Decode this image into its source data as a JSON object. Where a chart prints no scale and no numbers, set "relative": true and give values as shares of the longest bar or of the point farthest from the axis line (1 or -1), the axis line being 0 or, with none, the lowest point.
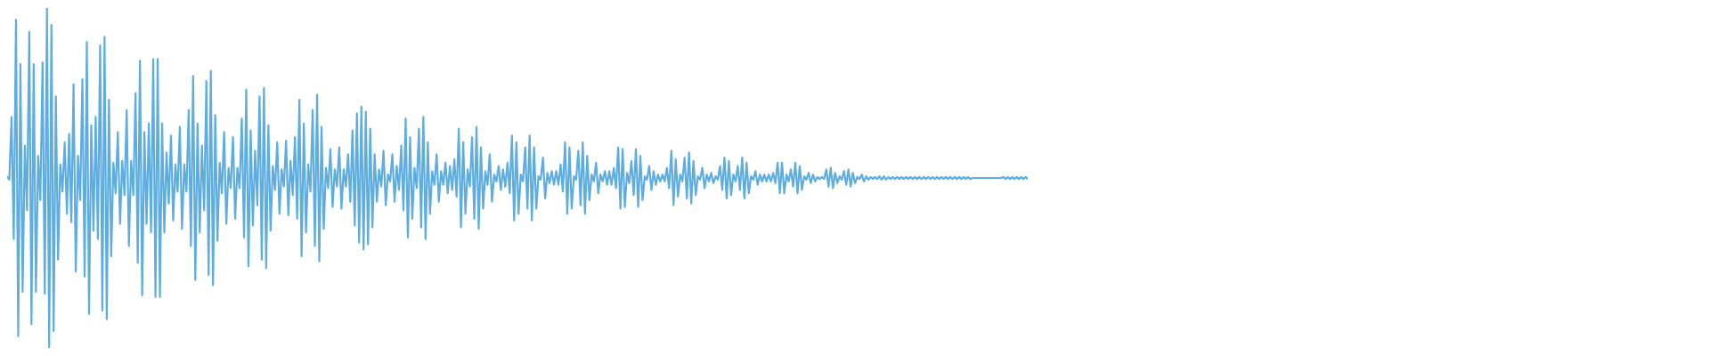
{
  "chart_data": {
    "type": "line",
    "relative": true,
    "categories": [
      null,
      null,
      null,
      null,
      null,
      null,
      null,
      null,
      null,
      null,
      null,
      null,
      null,
      null,
      null,
      null,
      null,
      null,
      null,
      null,
      null,
      null,
      null,
      null,
      null,
      null,
      null,
      null,
      null,
      null,
      null,
      null,
      null,
      null,
      null,
      null,
      null,
      null,
      null,
      null,
      null,
      null,
      null,
      null,
      null,
      null,
      null,
      null,
      null,
      null,
      null,
      null,
      null,
      null,
      null,
      null,
      null,
      null,
      null,
      null,
      null,
      null,
      null,
      null,
      null,
      null,
      null,
      null,
      null,
      null,
      null,
      null,
      null,
      null,
      null,
      null,
      null,
      null,
      null,
      null,
      null,
      null,
      null,
      null,
      null,
      null,
      null,
      null,
      null,
      null,
      null,
      null,
      null,
      null,
      null,
      null,
      null,
      null,
      null,
      null,
      null,
      null,
      null,
      null,
      null,
      null,
      null,
      null,
      null,
      null,
      null,
      null,
      null,
      null,
      null,
      null,
      null,
      null,
      null,
      null,
      null,
      null,
      null,
      null,
      null,
      null,
      null,
      null,
      null,
      null,
      null,
      null,
      null,
      null,
      null,
      null,
      null,
      null,
      null,
      null,
      null,
      null,
      null,
      null,
      null,
      null,
      null,
      null,
      null,
      null,
      null,
      null,
      null,
      null,
      null,
      null,
      null,
      null,
      null,
      null,
      null,
      null,
      null,
      null,
      null,
      null,
      null,
      null,
      null,
      null,
      null,
      null,
      null,
      null,
      null,
      null,
      null,
      null,
      null,
      null,
      null,
      null,
      null,
      null,
      null,
      null,
      null,
      null,
      null,
      null,
      null,
      null,
      null,
      null,
      null,
      null,
      null,
      null,
      null,
      null,
      null,
      null,
      null,
      null,
      null,
      null,
      null,
      null,
      null,
      null,
      null,
      null,
      null,
      null,
      null,
      null,
      null,
      null,
      null,
      null,
      null,
      null,
      null,
      null,
      null,
      null,
      null,
      null,
      null,
      null,
      null,
      null,
      null,
      null,
      null,
      null,
      null,
      null,
      null,
      null,
      null,
      null,
      null,
      null,
      null,
      null,
      null,
      null,
      null,
      null,
      null,
      null,
      null,
      null,
      null,
      null,
      null,
      null,
      null,
      null,
      null,
      null,
      null,
      null,
      null,
      null,
      null,
      null,
      null,
      null,
      null,
      null,
      null,
      null,
      null,
      null,
      null,
      null,
      null,
      null,
      null,
      null,
      null,
      null,
      null,
      null,
      null,
      null,
      null,
      null,
      null,
      null,
      null,
      null,
      null,
      null,
      null,
      null,
      null,
      null,
      null,
      null,
      null,
      null,
      null,
      null,
      null,
      null,
      null,
      null,
      null,
      null,
      null,
      null,
      null,
      null,
      null,
      null,
      null,
      null,
      null,
      null,
      null,
      null,
      null,
      null,
      null,
      null,
      null,
      null,
      null,
      null,
      null,
      null,
      null,
      null,
      null,
      null,
      null,
      null,
      null,
      null,
      null,
      null,
      null,
      null,
      null,
      null,
      null,
      null,
      null,
      null,
      null,
      null,
      null,
      null,
      null,
      null,
      null,
      null,
      null,
      null,
      null,
      null,
      null,
      null,
      null,
      null,
      null,
      null,
      null,
      null,
      null,
      null,
      null,
      null,
      null,
      null,
      null,
      null,
      null,
      null,
      null,
      null,
      null,
      null,
      null,
      null,
      null,
      null,
      null,
      null,
      null,
      null,
      null,
      null,
      null,
      null,
      null,
      null,
      null,
      null,
      null,
      null,
      null,
      null,
      null,
      null,
      null,
      null,
      null,
      null,
      null,
      null,
      null,
      null,
      null,
      null,
      null,
      null,
      null,
      null,
      null,
      null,
      null,
      null,
      null,
      null,
      null,
      null,
      null,
      null,
      null,
      null,
      null,
      null,
      null,
      null,
      null,
      null,
      null,
      null,
      null,
      null,
      null,
      null,
      null,
      null,
      null,
      null,
      null,
      null,
      null,
      null,
      null,
      null,
      null,
      null,
      null,
      null,
      null,
      null
    ],
    "series": [
      {
        "color": "#5dade2",
        "values": [
          0.505,
          0.495,
          0.68,
          0.32,
          0.965,
          0.035,
          0.835,
          0.165,
          0.595,
          0.405,
          0.93,
          0.07,
          0.835,
          0.165,
          0.565,
          0.435,
          0.84,
          0.16,
          1,
          0,
          0.95,
          0.05,
          0.74,
          0.26,
          0.54,
          0.46,
          0.605,
          0.395,
          0.63,
          0.37,
          0.775,
          0.225,
          0.565,
          0.435,
          0.79,
          0.21,
          0.9,
          0.1,
          0.655,
          0.345,
          0.68,
          0.32,
          0.89,
          0.11,
          0.915,
          0.085,
          0.73,
          0.27,
          0.545,
          0.455,
          0.635,
          0.365,
          0.55,
          0.45,
          0.7,
          0.3,
          0.55,
          0.45,
          0.75,
          0.25,
          0.845,
          0.155,
          0.635,
          0.365,
          0.66,
          0.34,
          0.85,
          0.15,
          0.85,
          0.15,
          0.66,
          0.34,
          0.575,
          0.425,
          0.625,
          0.375,
          0.54,
          0.46,
          0.65,
          0.35,
          0.54,
          0.46,
          0.7,
          0.3,
          0.8,
          0.2,
          0.66,
          0.34,
          0.595,
          0.405,
          0.785,
          0.215,
          0.815,
          0.185,
          0.685,
          0.315,
          0.545,
          0.455,
          0.635,
          0.365,
          0.53,
          0.47,
          0.62,
          0.38,
          0.53,
          0.47,
          0.675,
          0.325,
          0.76,
          0.24,
          0.64,
          0.36,
          0.58,
          0.42,
          0.74,
          0.26,
          0.765,
          0.235,
          0.655,
          0.345,
          0.535,
          0.465,
          0.605,
          0.395,
          0.525,
          0.475,
          0.61,
          0.39,
          0.55,
          0.45,
          0.62,
          0.38,
          0.73,
          0.27,
          0.66,
          0.34,
          0.54,
          0.46,
          0.7,
          0.3,
          0.745,
          0.255,
          0.65,
          0.35,
          0.53,
          0.47,
          0.585,
          0.415,
          0.525,
          0.475,
          0.59,
          0.41,
          0.525,
          0.475,
          0.57,
          0.43,
          0.64,
          0.36,
          0.69,
          0.31,
          0.71,
          0.29,
          0.695,
          0.305,
          0.645,
          0.355,
          0.57,
          0.43,
          0.525,
          0.475,
          0.58,
          0.42,
          0.51,
          0.49,
          0.57,
          0.43,
          0.535,
          0.465,
          0.595,
          0.405,
          0.675,
          0.325,
          0.62,
          0.38,
          0.53,
          0.47,
          0.645,
          0.355,
          0.68,
          0.32,
          0.605,
          0.395,
          0.52,
          0.48,
          0.57,
          0.43,
          0.52,
          0.48,
          0.545,
          0.455,
          0.535,
          0.465,
          0.555,
          0.445,
          0.645,
          0.355,
          0.605,
          0.395,
          0.525,
          0.475,
          0.62,
          0.38,
          0.65,
          0.35,
          0.59,
          0.41,
          0.52,
          0.48,
          0.57,
          0.43,
          0.51,
          0.49,
          0.535,
          0.465,
          0.525,
          0.475,
          0.545,
          0.455,
          0.625,
          0.375,
          0.605,
          0.395,
          0.51,
          0.49,
          0.59,
          0.41,
          0.625,
          0.375,
          0.59,
          0.41,
          0.505,
          0.495,
          0.56,
          0.44,
          0.515,
          0.485,
          0.52,
          0.48,
          0.52,
          0.48,
          0.54,
          0.46,
          0.605,
          0.395,
          0.59,
          0.41,
          0.505,
          0.495,
          0.58,
          0.42,
          0.605,
          0.395,
          0.565,
          0.435,
          0.51,
          0.49,
          0.545,
          0.455,
          0.51,
          0.49,
          0.52,
          0.48,
          0.52,
          0.48,
          0.53,
          0.47,
          0.59,
          0.41,
          0.585,
          0.415,
          0.515,
          0.485,
          0.55,
          0.45,
          0.585,
          0.415,
          0.565,
          0.435,
          0.505,
          0.495,
          0.535,
          0.465,
          0.52,
          0.48,
          0.51,
          0.49,
          0.51,
          0.49,
          0.53,
          0.47,
          0.58,
          0.42,
          0.555,
          0.445,
          0.51,
          0.49,
          0.56,
          0.44,
          0.575,
          0.425,
          0.55,
          0.45,
          0.505,
          0.495,
          0.53,
          0.47,
          0.51,
          0.49,
          0.515,
          0.485,
          0.505,
          0.495,
          0.535,
          0.465,
          0.56,
          0.44,
          0.55,
          0.45,
          0.51,
          0.49,
          0.535,
          0.465,
          0.56,
          0.44,
          0.545,
          0.455,
          0.505,
          0.495,
          0.52,
          0.48,
          0.51,
          0.49,
          0.51,
          0.49,
          0.51,
          0.49,
          0.515,
          0.485,
          0.545,
          0.455,
          0.545,
          0.455,
          0.51,
          0.49,
          0.525,
          0.475,
          0.545,
          0.455,
          0.535,
          0.465,
          0.505,
          0.495,
          0.515,
          0.485,
          0.51,
          0.49,
          0.503,
          0.497,
          0.503,
          0.497,
          0.525,
          0.475,
          0.53,
          0.47,
          0.515,
          0.485,
          0.505,
          0.495,
          0.52,
          0.48,
          0.525,
          0.475,
          0.515,
          0.485,
          0.503,
          0.497,
          0.51,
          0.49,
          0.505,
          0.495,
          0.503,
          0.497,
          0.503,
          0.497,
          0.505,
          0.495,
          0.505,
          0.495,
          0.503,
          0.497,
          0.503,
          0.497,
          0.503,
          0.497,
          0.503,
          0.497,
          0.503,
          0.497,
          0.503,
          0.497,
          0.503,
          0.497,
          0.503,
          0.497,
          0.503,
          0.497,
          0.503,
          0.497,
          0.503,
          0.497,
          0.503,
          0.497,
          0.503,
          0.497,
          0.503,
          0.497,
          0.503,
          0.497,
          0.503,
          0.497,
          0.503,
          0.497,
          0.503,
          0.497,
          0.503,
          0.497,
          0.5,
          0.5,
          0.5,
          0.5,
          0.5,
          0.5,
          0.5,
          0.5,
          0.5,
          0.5,
          0.5,
          0.5,
          0.5,
          0.5,
          0.503,
          0.497,
          0.503,
          0.497,
          0.503,
          0.497,
          0.503,
          0.497,
          0.503,
          0.497,
          0.503,
          0.497
        ]
      }
    ]
  }
}
